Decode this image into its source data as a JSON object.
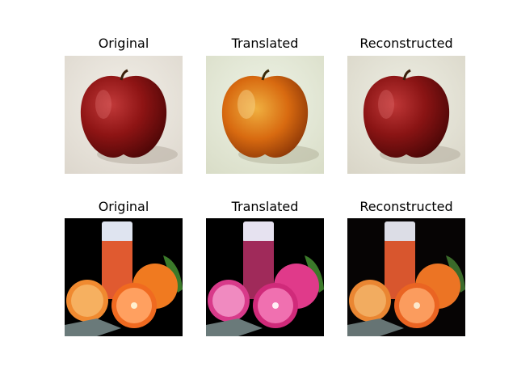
{
  "figure": {
    "rows": [
      {
        "subject": "apple",
        "panels": [
          {
            "title": "Original",
            "variant": "red-apple"
          },
          {
            "title": "Translated",
            "variant": "orange-apple"
          },
          {
            "title": "Reconstructed",
            "variant": "red-apple"
          }
        ]
      },
      {
        "subject": "juice",
        "panels": [
          {
            "title": "Original",
            "variant": "orange-juice"
          },
          {
            "title": "Translated",
            "variant": "pink-juice"
          },
          {
            "title": "Reconstructed",
            "variant": "orange-juice"
          }
        ]
      }
    ]
  }
}
